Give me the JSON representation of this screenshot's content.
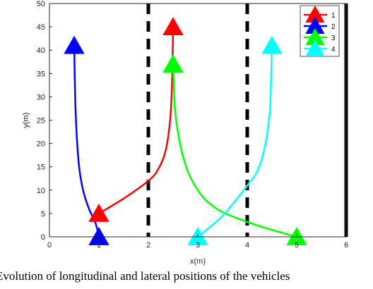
{
  "chart_data": {
    "type": "line",
    "xlabel": "x(m)",
    "ylabel": "y(m)",
    "xlim": [
      0,
      6
    ],
    "ylim": [
      0,
      50
    ],
    "xticks": [
      "0",
      "1",
      "2",
      "3",
      "4",
      "5",
      "6"
    ],
    "yticks": [
      "0",
      "5",
      "10",
      "15",
      "20",
      "25",
      "30",
      "35",
      "40",
      "45",
      "50"
    ],
    "grid": false,
    "legend_position": "top-right",
    "lane_lines": [
      {
        "x": 2,
        "style": "dashed",
        "color": "#000000"
      },
      {
        "x": 4,
        "style": "dashed",
        "color": "#000000"
      },
      {
        "x": 6,
        "style": "solid",
        "color": "#000000"
      }
    ],
    "series": [
      {
        "name": "1",
        "color": "#ff0000",
        "start": [
          1,
          5
        ],
        "end": [
          2.5,
          45
        ],
        "points": [
          [
            1,
            5
          ],
          [
            1.5,
            8.2
          ],
          [
            2,
            12
          ],
          [
            2.2,
            14.5
          ],
          [
            2.35,
            18.5
          ],
          [
            2.44,
            25
          ],
          [
            2.48,
            33
          ],
          [
            2.5,
            45
          ]
        ]
      },
      {
        "name": "2",
        "color": "#0000ff",
        "start": [
          1,
          0
        ],
        "end": [
          0.5,
          41
        ],
        "points": [
          [
            1,
            0
          ],
          [
            0.93,
            3
          ],
          [
            0.8,
            6
          ],
          [
            0.68,
            10
          ],
          [
            0.6,
            15
          ],
          [
            0.55,
            22
          ],
          [
            0.52,
            30
          ],
          [
            0.5,
            41
          ]
        ]
      },
      {
        "name": "3",
        "color": "#00ff00",
        "start": [
          5,
          0
        ],
        "end": [
          2.5,
          37
        ],
        "points": [
          [
            5,
            0
          ],
          [
            4.5,
            1.5
          ],
          [
            4,
            3.2
          ],
          [
            3.5,
            5.3
          ],
          [
            3.2,
            7.5
          ],
          [
            3,
            10
          ],
          [
            2.8,
            14
          ],
          [
            2.65,
            19.5
          ],
          [
            2.55,
            26
          ],
          [
            2.52,
            31
          ],
          [
            2.5,
            37
          ]
        ]
      },
      {
        "name": "4",
        "color": "#00ffff",
        "start": [
          3,
          0
        ],
        "end": [
          4.5,
          41
        ],
        "points": [
          [
            3,
            0
          ],
          [
            3.5,
            4.5
          ],
          [
            4,
            11
          ],
          [
            4.2,
            14
          ],
          [
            4.35,
            19
          ],
          [
            4.45,
            26
          ],
          [
            4.48,
            33
          ],
          [
            4.5,
            41
          ]
        ]
      }
    ]
  },
  "caption": "Evolution of longitudinal and lateral positions of the vehicles"
}
